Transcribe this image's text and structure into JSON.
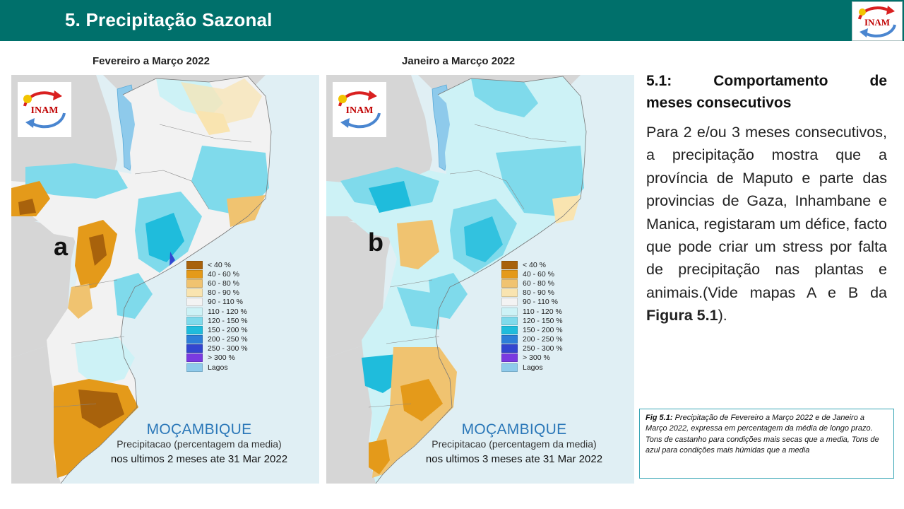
{
  "header": {
    "title": "5. Precipitação Sazonal",
    "logo_text": "INAM",
    "background": "#00706b"
  },
  "maps": [
    {
      "title": "Fevereiro a Março 2022",
      "letter": "a",
      "logo_text": "INAM",
      "country": "MOÇAMBIQUE",
      "caption_line1": "Precipitacao (percentagem da media)",
      "caption_line2": "nos ultimos 2 meses ate 31 Mar 2022"
    },
    {
      "title": "Janeiro a Marcço 2022",
      "letter": "b",
      "logo_text": "INAM",
      "country": "MOÇAMBIQUE",
      "caption_line1": "Precipitacao (percentagem da media)",
      "caption_line2": "nos ultimos 3 meses ate 31 Mar 2022"
    }
  ],
  "legend": [
    {
      "label": "< 40 %",
      "color": "#a8620c"
    },
    {
      "label": "40 - 60 %",
      "color": "#e49a1a"
    },
    {
      "label": "60 - 80 %",
      "color": "#f0c370"
    },
    {
      "label": "80 - 90 %",
      "color": "#f9e4b0"
    },
    {
      "label": "90 - 110 %",
      "color": "#f3f3f3"
    },
    {
      "label": "110 - 120 %",
      "color": "#cdf2f6"
    },
    {
      "label": "120 - 150 %",
      "color": "#7fdaeb"
    },
    {
      "label": "150 - 200 %",
      "color": "#1fbcdc"
    },
    {
      "label": "200 - 250 %",
      "color": "#2d7fd8"
    },
    {
      "label": "250 - 300 %",
      "color": "#3346d0"
    },
    {
      "label": "> 300 %",
      "color": "#7a3ae0"
    },
    {
      "label": "Lagos",
      "color": "#8ecaeb"
    }
  ],
  "section": {
    "heading_line1": "5.1: Comportamento de",
    "heading_line2": "meses consecutivos",
    "body_prefix": "Para 2 e/ou 3 meses consecutivos, a precipitação mostra que a província de Maputo e parte das provincias de Gaza, Inhambane e Manica, registaram um défice, facto que pode criar um stress por falta de precipitação nas plantas e animais.(Vide mapas A e B da ",
    "body_bold": "Figura 5.1",
    "body_suffix": ")."
  },
  "figure_caption": {
    "label": "Fig 5.1:",
    "text1": " Precipitação de Fevereiro a Março 2022 e de Janeiro a Março 2022, expressa em percentagem da média de longo prazo.",
    "text2": "Tons de castanho para condições mais secas que a media, Tons de azul para condições mais húmidas que a media"
  }
}
